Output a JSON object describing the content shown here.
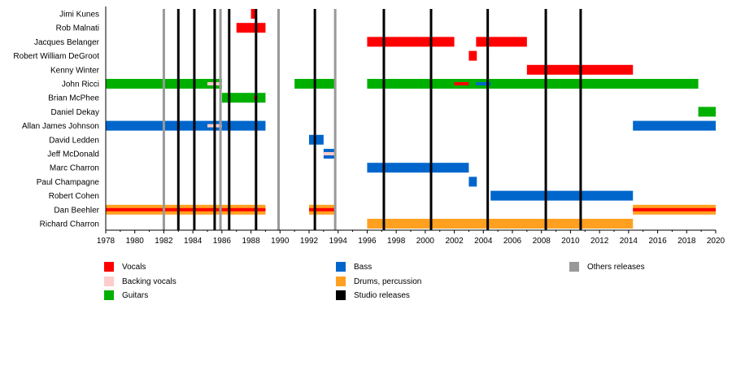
{
  "chart_data": {
    "type": "timeline",
    "title": "",
    "xlim": [
      1978,
      2020
    ],
    "xticks": [
      1978,
      1980,
      1982,
      1984,
      1986,
      1988,
      1990,
      1992,
      1994,
      1996,
      1998,
      2000,
      2002,
      2004,
      2006,
      2008,
      2010,
      2012,
      2014,
      2016,
      2018,
      2020
    ],
    "colors": {
      "vocals": "#ff0000",
      "backing": "#ffcccc",
      "guitars": "#00b000",
      "bass": "#0066cc",
      "drums": "#ffa020",
      "studio": "#000000",
      "others": "#999999"
    },
    "members": [
      {
        "name": "Jimi Kunes",
        "bars": [
          {
            "role": "vocals",
            "start": 1988.0,
            "end": 1988.4
          }
        ]
      },
      {
        "name": "Rob Malnati",
        "bars": [
          {
            "role": "vocals",
            "start": 1987.0,
            "end": 1989.0
          }
        ]
      },
      {
        "name": "Jacques Belanger",
        "bars": [
          {
            "role": "vocals",
            "start": 1996.0,
            "end": 2002.0
          },
          {
            "role": "vocals",
            "start": 2003.5,
            "end": 2007.0
          }
        ]
      },
      {
        "name": "Robert William DeGroot",
        "bars": [
          {
            "role": "vocals",
            "start": 2003.0,
            "end": 2003.55
          }
        ]
      },
      {
        "name": "Kenny Winter",
        "bars": [
          {
            "role": "vocals",
            "start": 2007.0,
            "end": 2014.3
          }
        ]
      },
      {
        "name": "John Ricci",
        "bars": [
          {
            "role": "guitars",
            "start": 1978.0,
            "end": 1986.0
          },
          {
            "role": "backing",
            "start": 1985.0,
            "end": 1986.0,
            "thin": true
          },
          {
            "role": "guitars",
            "start": 1991.0,
            "end": 1993.85
          },
          {
            "role": "guitars",
            "start": 1996.0,
            "end": 2018.8
          },
          {
            "role": "vocals",
            "start": 2002.0,
            "end": 2003.0,
            "thin": true
          },
          {
            "role": "bass",
            "start": 2003.5,
            "end": 2004.5,
            "thin": true
          }
        ]
      },
      {
        "name": "Brian McPhee",
        "bars": [
          {
            "role": "guitars",
            "start": 1986.0,
            "end": 1989.0
          },
          {
            "role": "vocals",
            "start": 1988.2,
            "end": 1988.45,
            "thin": true
          }
        ]
      },
      {
        "name": "Daniel Dekay",
        "bars": [
          {
            "role": "guitars",
            "start": 2018.8,
            "end": 2020.0
          }
        ]
      },
      {
        "name": "Allan James Johnson",
        "bars": [
          {
            "role": "bass",
            "start": 1978.0,
            "end": 1989.0
          },
          {
            "role": "backing",
            "start": 1985.0,
            "end": 1986.0,
            "thin": true
          },
          {
            "role": "bass",
            "start": 2014.3,
            "end": 2020.0
          }
        ]
      },
      {
        "name": "David Ledden",
        "bars": [
          {
            "role": "bass",
            "start": 1992.0,
            "end": 1993.0
          }
        ]
      },
      {
        "name": "Jeff McDonald",
        "bars": [
          {
            "role": "bass",
            "start": 1993.0,
            "end": 1993.85
          },
          {
            "role": "backing",
            "start": 1993.0,
            "end": 1993.85,
            "thin": true
          }
        ]
      },
      {
        "name": "Marc Charron",
        "bars": [
          {
            "role": "bass",
            "start": 1996.0,
            "end": 2003.0
          }
        ]
      },
      {
        "name": "Paul Champagne",
        "bars": [
          {
            "role": "bass",
            "start": 2003.0,
            "end": 2003.55
          }
        ]
      },
      {
        "name": "Robert Cohen",
        "bars": [
          {
            "role": "bass",
            "start": 2004.5,
            "end": 2014.3
          }
        ]
      },
      {
        "name": "Dan Beehler",
        "bars": [
          {
            "role": "drums",
            "start": 1978.0,
            "end": 1989.0
          },
          {
            "role": "vocals",
            "start": 1978.0,
            "end": 1989.0,
            "thin": true
          },
          {
            "role": "drums",
            "start": 1992.0,
            "end": 1993.85
          },
          {
            "role": "vocals",
            "start": 1992.0,
            "end": 1993.85,
            "thin": true
          },
          {
            "role": "drums",
            "start": 2014.3,
            "end": 2020.0
          },
          {
            "role": "vocals",
            "start": 2014.3,
            "end": 2020.0,
            "thin": true
          }
        ]
      },
      {
        "name": "Richard Charron",
        "bars": [
          {
            "role": "drums",
            "start": 1996.0,
            "end": 2014.3
          }
        ]
      }
    ],
    "releases": [
      {
        "type": "others",
        "year": 1982.0
      },
      {
        "type": "studio",
        "year": 1983.0
      },
      {
        "type": "studio",
        "year": 1984.1
      },
      {
        "type": "studio",
        "year": 1985.5
      },
      {
        "type": "others",
        "year": 1985.9
      },
      {
        "type": "studio",
        "year": 1986.5
      },
      {
        "type": "studio",
        "year": 1988.35
      },
      {
        "type": "others",
        "year": 1989.9
      },
      {
        "type": "studio",
        "year": 1992.4
      },
      {
        "type": "others",
        "year": 1993.8
      },
      {
        "type": "studio",
        "year": 1997.15
      },
      {
        "type": "studio",
        "year": 2000.4
      },
      {
        "type": "studio",
        "year": 2004.3
      },
      {
        "type": "studio",
        "year": 2008.3
      },
      {
        "type": "studio",
        "year": 2010.7
      }
    ],
    "legend": [
      {
        "key": "vocals",
        "label": "Vocals"
      },
      {
        "key": "backing",
        "label": "Backing vocals"
      },
      {
        "key": "guitars",
        "label": "Guitars"
      },
      {
        "key": "bass",
        "label": "Bass"
      },
      {
        "key": "drums",
        "label": "Drums, percussion"
      },
      {
        "key": "studio",
        "label": "Studio releases"
      },
      {
        "key": "others",
        "label": "Others releases"
      }
    ]
  }
}
